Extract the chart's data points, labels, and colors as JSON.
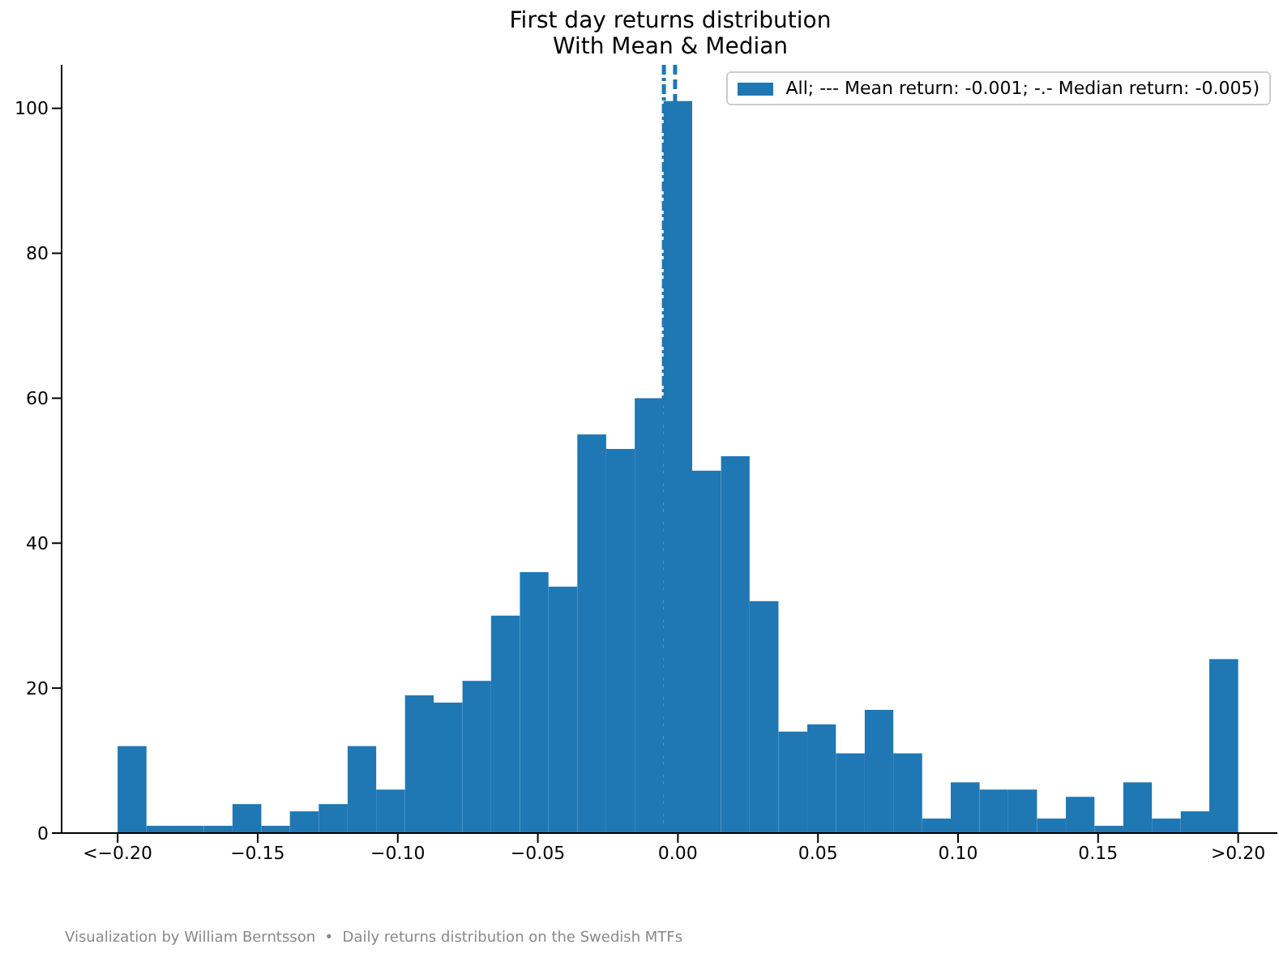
{
  "chart_data": {
    "type": "histogram",
    "title": "First day returns distribution",
    "subtitle": "With Mean & Median",
    "bins": [
      -0.2,
      -0.1897,
      -0.1795,
      -0.1692,
      -0.159,
      -0.1487,
      -0.1385,
      -0.1282,
      -0.1179,
      -0.1077,
      -0.0974,
      -0.0872,
      -0.0769,
      -0.0667,
      -0.0564,
      -0.0462,
      -0.0359,
      -0.0256,
      -0.0154,
      -0.0051,
      0.0051,
      0.0154,
      0.0256,
      0.0359,
      0.0462,
      0.0564,
      0.0667,
      0.0769,
      0.0872,
      0.0974,
      0.1077,
      0.1179,
      0.1282,
      0.1385,
      0.1487,
      0.159,
      0.1692,
      0.1795,
      0.1897,
      0.2
    ],
    "series": [
      {
        "name": "All; --- Mean return: -0.001; -.- Median return: -0.005)",
        "color": "#1f77b4",
        "values": [
          12,
          1,
          1,
          1,
          4,
          1,
          3,
          4,
          12,
          6,
          19,
          18,
          21,
          30,
          36,
          34,
          55,
          53,
          60,
          101,
          50,
          52,
          32,
          14,
          15,
          11,
          17,
          11,
          2,
          7,
          6,
          6,
          2,
          5,
          1,
          7,
          2,
          3,
          24
        ]
      }
    ],
    "xlim": [
      -0.22,
      0.214
    ],
    "xticks": [
      {
        "value": -0.2,
        "label": "<−0.20"
      },
      {
        "value": -0.15,
        "label": "−0.15"
      },
      {
        "value": -0.1,
        "label": "−0.10"
      },
      {
        "value": -0.05,
        "label": "−0.05"
      },
      {
        "value": 0,
        "label": "0.00"
      },
      {
        "value": 0.05,
        "label": "0.05"
      },
      {
        "value": 0.1,
        "label": "0.10"
      },
      {
        "value": 0.15,
        "label": "0.15"
      },
      {
        "value": 0.2,
        "label": ">0.20"
      }
    ],
    "ylim": [
      0,
      106
    ],
    "yticks": [
      0,
      20,
      40,
      60,
      80,
      100
    ],
    "ref_lines": [
      {
        "axis": "x",
        "value": -0.001,
        "color": "#1f77b4",
        "line_style": "dashed"
      },
      {
        "axis": "x",
        "value": -0.005,
        "color": "#1f77b4",
        "line_style": "dotted"
      }
    ],
    "legend": "top right",
    "annotations": [
      "Visualization by William Berntsson  •  Daily returns distribution on the Swedish MTFs"
    ]
  }
}
